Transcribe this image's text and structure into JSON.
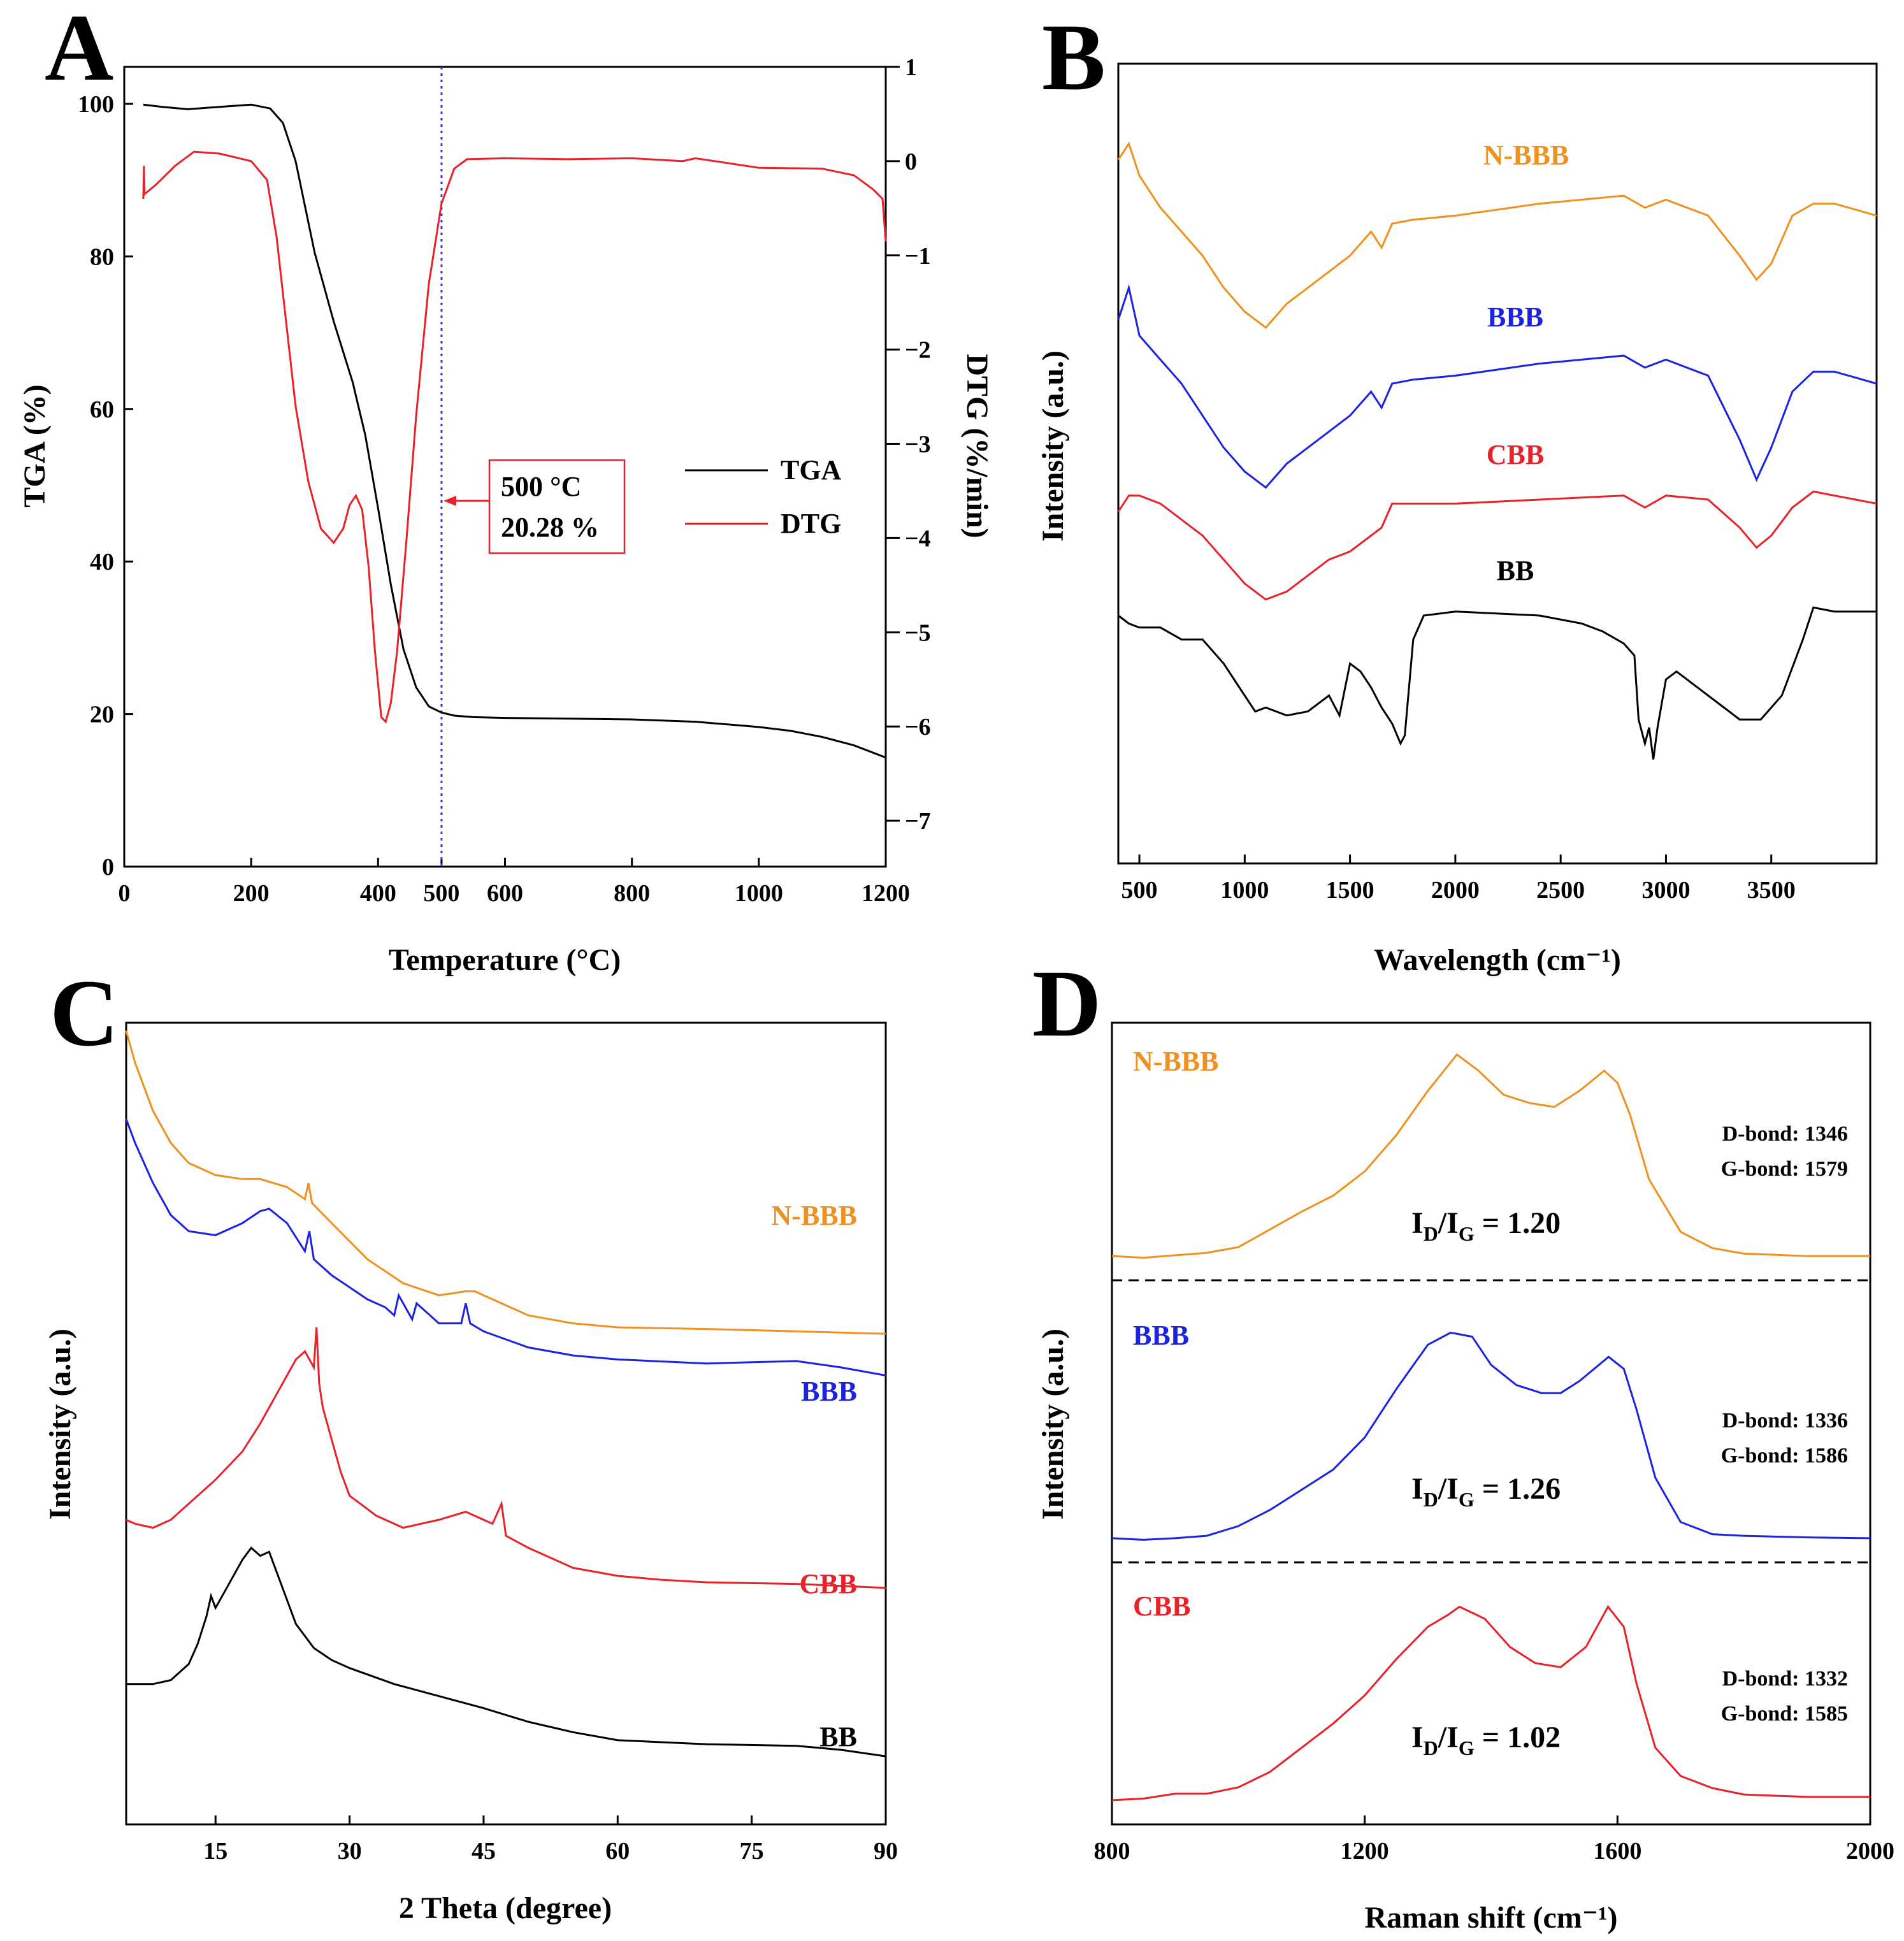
{
  "figure": {
    "panels": [
      "A",
      "B",
      "C",
      "D"
    ]
  },
  "colors": {
    "axis": "#000000",
    "tga": "#000000",
    "dtg": "#e8222a",
    "n_bbb": "#f0901e",
    "bbb": "#1b23e0",
    "cbb": "#e8222a",
    "bb": "#000000",
    "marker_line": "#3333ff"
  },
  "chart_data": [
    {
      "panel": "A",
      "type": "line",
      "xlabel": "Temperature (°C)",
      "ylabel": "TGA (%)",
      "y2label": "DTG (%/min)",
      "xlim": [
        0,
        1200
      ],
      "ylim": [
        0,
        105
      ],
      "y2lim": [
        -7.5,
        1
      ],
      "xticks": [
        "0",
        "200",
        "400",
        "500",
        "600",
        "800",
        "1000",
        "1200"
      ],
      "xtick_values": [
        0,
        200,
        400,
        500,
        600,
        800,
        1000,
        1200
      ],
      "yticks": [
        "0",
        "20",
        "40",
        "60",
        "80",
        "100"
      ],
      "ytick_values": [
        0,
        20,
        40,
        60,
        80,
        100
      ],
      "y2ticks": [
        "1",
        "0",
        "−1",
        "−2",
        "−3",
        "−4",
        "−5",
        "−6",
        "−7"
      ],
      "y2tick_values": [
        1,
        0,
        -1,
        -2,
        -3,
        -4,
        -5,
        -6,
        -7
      ],
      "vline_x": 500,
      "annotation": {
        "line1": "500 °C",
        "line2": "20.28 %"
      },
      "legend": [
        "TGA",
        "DTG"
      ],
      "series": [
        {
          "name": "TGA",
          "axis": "left",
          "color": "#000000",
          "x": [
            30,
            60,
            100,
            150,
            200,
            230,
            250,
            270,
            300,
            330,
            360,
            380,
            400,
            420,
            440,
            460,
            480,
            500,
            520,
            550,
            600,
            700,
            800,
            900,
            1000,
            1050,
            1100,
            1150,
            1200
          ],
          "y": [
            99.9,
            99.6,
            99.3,
            99.6,
            99.9,
            99.4,
            97.5,
            92.5,
            80.5,
            71.5,
            63.5,
            56.5,
            47.0,
            37.0,
            28.5,
            23.5,
            21.0,
            20.2,
            19.8,
            19.6,
            19.5,
            19.4,
            19.3,
            19.0,
            18.3,
            17.8,
            17.0,
            15.9,
            14.3
          ]
        },
        {
          "name": "DTG",
          "axis": "right",
          "color": "#e8222a",
          "x": [
            30,
            31,
            32,
            50,
            80,
            110,
            150,
            200,
            225,
            240,
            255,
            270,
            290,
            310,
            330,
            345,
            355,
            365,
            375,
            385,
            395,
            405,
            412,
            420,
            430,
            445,
            460,
            480,
            500,
            520,
            540,
            600,
            700,
            800,
            880,
            900,
            1000,
            1100,
            1150,
            1180,
            1195,
            1200
          ],
          "y": [
            -0.4,
            -0.05,
            -0.35,
            -0.25,
            -0.05,
            0.1,
            0.08,
            0.0,
            -0.2,
            -0.8,
            -1.7,
            -2.6,
            -3.4,
            -3.9,
            -4.05,
            -3.9,
            -3.65,
            -3.55,
            -3.7,
            -4.3,
            -5.2,
            -5.9,
            -5.95,
            -5.75,
            -5.2,
            -4.0,
            -2.7,
            -1.3,
            -0.45,
            -0.08,
            0.02,
            0.03,
            0.02,
            0.03,
            0.0,
            0.03,
            -0.07,
            -0.08,
            -0.15,
            -0.3,
            -0.4,
            -0.85
          ]
        }
      ]
    },
    {
      "panel": "B",
      "type": "line",
      "xlabel": "Wavelength (cm⁻¹)",
      "ylabel": "Intensity (a.u.)",
      "xlim": [
        400,
        4000
      ],
      "ylim": [
        0,
        100
      ],
      "xticks": [
        "500",
        "1000",
        "1500",
        "2000",
        "2500",
        "3000",
        "3500"
      ],
      "xtick_values": [
        500,
        1000,
        1500,
        2000,
        2500,
        3000,
        3500
      ],
      "series": [
        {
          "name": "N-BBB",
          "color": "#f0901e",
          "x": [
            400,
            450,
            500,
            600,
            700,
            800,
            900,
            1000,
            1100,
            1200,
            1300,
            1400,
            1500,
            1600,
            1650,
            1700,
            1800,
            2000,
            2400,
            2800,
            2900,
            3000,
            3200,
            3350,
            3430,
            3500,
            3600,
            3700,
            3800,
            4000
          ],
          "y": [
            88,
            90,
            86,
            82,
            79,
            76,
            72,
            69,
            67,
            70,
            72,
            74,
            76,
            79,
            77,
            80,
            80.5,
            81,
            82.5,
            83.5,
            82,
            83,
            81,
            76,
            73,
            75,
            81,
            82.5,
            82.5,
            81
          ]
        },
        {
          "name": "BBB",
          "color": "#1b23e0",
          "x": [
            400,
            450,
            500,
            600,
            700,
            800,
            900,
            1000,
            1100,
            1200,
            1300,
            1400,
            1500,
            1600,
            1650,
            1700,
            1800,
            2000,
            2400,
            2800,
            2900,
            3000,
            3200,
            3350,
            3430,
            3500,
            3600,
            3700,
            3800,
            4000
          ],
          "y": [
            68,
            72,
            66,
            63,
            60,
            56,
            52,
            49,
            47,
            50,
            52,
            54,
            56,
            59,
            57,
            60,
            60.5,
            61,
            62.5,
            63.5,
            62,
            63,
            61,
            53,
            48,
            52,
            59,
            61.5,
            61.5,
            60
          ]
        },
        {
          "name": "CBB",
          "color": "#e8222a",
          "x": [
            400,
            450,
            500,
            600,
            700,
            800,
            900,
            1000,
            1100,
            1200,
            1300,
            1400,
            1500,
            1600,
            1650,
            1700,
            1800,
            2000,
            2400,
            2800,
            2900,
            3000,
            3200,
            3350,
            3430,
            3500,
            3600,
            3700,
            3800,
            4000
          ],
          "y": [
            44,
            46,
            46,
            45,
            43,
            41,
            38,
            35,
            33,
            34,
            36,
            38,
            39,
            41,
            42,
            45,
            45,
            45,
            45.5,
            46,
            44.5,
            46,
            45.5,
            42,
            39.5,
            41,
            44.5,
            46.5,
            46,
            45
          ]
        },
        {
          "name": "BB",
          "color": "#000000",
          "x": [
            400,
            450,
            500,
            600,
            700,
            800,
            900,
            1000,
            1050,
            1100,
            1200,
            1300,
            1400,
            1450,
            1500,
            1550,
            1600,
            1650,
            1700,
            1740,
            1760,
            1800,
            1850,
            2000,
            2400,
            2600,
            2700,
            2800,
            2850,
            2870,
            2900,
            2920,
            2940,
            2960,
            3000,
            3050,
            3100,
            3200,
            3300,
            3350,
            3450,
            3550,
            3650,
            3700,
            3800,
            4000
          ],
          "y": [
            31,
            30,
            29.5,
            29.5,
            28,
            28,
            25,
            21,
            19,
            19.5,
            18.5,
            19,
            21,
            18.5,
            25,
            24,
            22,
            19.5,
            17.5,
            15,
            16,
            28,
            31,
            31.5,
            31,
            30,
            29,
            27.5,
            26,
            18,
            15,
            17,
            13,
            17,
            23,
            24,
            23,
            21,
            19,
            18,
            18,
            21,
            28,
            32,
            31.5,
            31.5
          ]
        }
      ],
      "labels": [
        "N-BBB",
        "BBB",
        "CBB",
        "BB"
      ]
    },
    {
      "panel": "C",
      "type": "line",
      "xlabel": "2 Theta (degree)",
      "ylabel": "Intensity (a.u.)",
      "xlim": [
        5,
        90
      ],
      "ylim": [
        0,
        100
      ],
      "xticks": [
        "15",
        "30",
        "45",
        "60",
        "75",
        "90"
      ],
      "xtick_values": [
        15,
        30,
        45,
        60,
        75,
        90
      ],
      "series": [
        {
          "name": "N-BBB",
          "color": "#f0901e",
          "x": [
            5,
            6,
            8,
            10,
            12,
            15,
            18,
            20,
            23,
            25,
            25.4,
            25.8,
            28,
            32,
            36,
            40,
            43,
            44,
            46,
            50,
            55,
            60,
            70,
            80,
            90
          ],
          "y": [
            99,
            95,
            89,
            85,
            82.5,
            81,
            80.5,
            80.5,
            79.5,
            78,
            80,
            77.5,
            75,
            70.5,
            67.5,
            66,
            66.5,
            66.5,
            65.5,
            63.5,
            62.5,
            62,
            61.8,
            61.5,
            61.2
          ]
        },
        {
          "name": "BBB",
          "color": "#1b23e0",
          "x": [
            5,
            6,
            8,
            10,
            12,
            15,
            18,
            20,
            21,
            23,
            25,
            25.5,
            26,
            28,
            30,
            32,
            34,
            35,
            35.5,
            37,
            37.5,
            40,
            42.5,
            43,
            43.5,
            45,
            50,
            55,
            60,
            70,
            80,
            85,
            90
          ],
          "y": [
            88,
            85,
            80,
            76,
            74,
            73.5,
            75,
            76.5,
            76.8,
            75,
            71.5,
            74,
            70.5,
            68.5,
            67,
            65.5,
            64.5,
            63.5,
            66,
            63,
            65,
            62.5,
            62.5,
            65,
            62.5,
            61.5,
            59.5,
            58.5,
            58,
            57.5,
            57.8,
            57,
            56
          ]
        },
        {
          "name": "CBB",
          "color": "#e8222a",
          "x": [
            5,
            6,
            8,
            10,
            12,
            15,
            18,
            20,
            22,
            24,
            25,
            26,
            26.3,
            26.6,
            27,
            28,
            29,
            30,
            33,
            36,
            40,
            43,
            46,
            47,
            47.5,
            50,
            55,
            60,
            65,
            70,
            80,
            90
          ],
          "y": [
            38,
            37.5,
            37,
            38,
            40,
            43,
            46.5,
            50,
            54,
            58,
            59,
            57,
            62,
            55,
            52,
            48,
            44,
            41,
            38.5,
            37,
            38,
            39,
            37.5,
            40,
            36,
            34.5,
            32,
            31,
            30.5,
            30.2,
            30,
            29.5
          ]
        },
        {
          "name": "BB",
          "color": "#000000",
          "x": [
            5,
            8,
            10,
            12,
            13,
            14,
            14.5,
            15,
            16,
            18,
            19,
            20,
            21,
            22,
            24,
            26,
            28,
            30,
            35,
            40,
            45,
            50,
            55,
            60,
            70,
            80,
            85,
            90
          ],
          "y": [
            17.5,
            17.5,
            18,
            20,
            22.5,
            26,
            28.5,
            27,
            29,
            33,
            34.5,
            33.5,
            34,
            31,
            25,
            22,
            20.5,
            19.5,
            17.5,
            16,
            14.5,
            12.8,
            11.5,
            10.5,
            10,
            9.8,
            9.3,
            8.5
          ]
        }
      ],
      "labels": [
        "N-BBB",
        "BBB",
        "CBB",
        "BB"
      ]
    },
    {
      "panel": "D",
      "type": "line",
      "xlabel": "Raman shift (cm⁻¹)",
      "ylabel": "Intensity (a.u.)",
      "xlim": [
        800,
        2000
      ],
      "ylim": [
        0,
        100
      ],
      "xticks": [
        "800",
        "1200",
        "1600",
        "2000"
      ],
      "xtick_values": [
        800,
        1200,
        1600,
        2000
      ],
      "dashed_separators": [
        64.5,
        29.5
      ],
      "series": [
        {
          "name": "N-BBB",
          "color": "#f0901e",
          "x": [
            800,
            850,
            900,
            950,
            1000,
            1050,
            1100,
            1150,
            1200,
            1250,
            1300,
            1346,
            1380,
            1420,
            1460,
            1500,
            1540,
            1579,
            1600,
            1620,
            1650,
            1700,
            1750,
            1800,
            1900,
            2000
          ],
          "y": [
            67.5,
            67.3,
            67.6,
            67.9,
            68.6,
            70.8,
            73,
            75,
            78,
            82.5,
            88,
            92.5,
            90.5,
            87.5,
            86.5,
            86,
            88,
            90.5,
            89,
            85,
            77,
            70.5,
            68.5,
            67.8,
            67.5,
            67.5
          ]
        },
        {
          "name": "BBB",
          "color": "#1b23e0",
          "x": [
            800,
            850,
            900,
            950,
            1000,
            1050,
            1100,
            1150,
            1200,
            1250,
            1300,
            1336,
            1370,
            1400,
            1440,
            1480,
            1510,
            1540,
            1586,
            1610,
            1630,
            1660,
            1700,
            1750,
            1800,
            1900,
            2000
          ],
          "y": [
            32.5,
            32.3,
            32.5,
            32.8,
            34,
            36,
            38.5,
            41,
            45,
            51,
            56.5,
            58,
            57.5,
            54,
            51.5,
            50.5,
            50.5,
            52,
            55,
            53.5,
            48.5,
            40,
            34.5,
            33,
            32.8,
            32.6,
            32.5
          ]
        },
        {
          "name": "CBB",
          "color": "#e8222a",
          "x": [
            800,
            850,
            900,
            950,
            1000,
            1050,
            1100,
            1150,
            1200,
            1250,
            1300,
            1332,
            1350,
            1390,
            1430,
            1470,
            1510,
            1550,
            1585,
            1610,
            1630,
            1660,
            1700,
            1750,
            1800,
            1900,
            2000
          ],
          "y": [
            0,
            0.2,
            0.8,
            0.8,
            1.6,
            3.5,
            6.5,
            9.5,
            13,
            17.5,
            21.5,
            23,
            24,
            22.5,
            19,
            17,
            16.5,
            19,
            24,
            21.5,
            14.5,
            6.5,
            3,
            1.5,
            0.7,
            0.4,
            0.4
          ]
        }
      ],
      "labels": [
        "N-BBB",
        "BBB",
        "CBB"
      ],
      "notes": [
        {
          "sample": "N-BBB",
          "d_bond": "D-bond: 1346",
          "g_bond": "G-bond: 1579",
          "ratio_value": "1.20"
        },
        {
          "sample": "BBB",
          "d_bond": "D-bond: 1336",
          "g_bond": "G-bond: 1586",
          "ratio_value": "1.26"
        },
        {
          "sample": "CBB",
          "d_bond": "D-bond: 1332",
          "g_bond": "G-bond: 1585",
          "ratio_value": "1.02"
        }
      ],
      "ratio_prefix": "I",
      "ratio_sub_d": "D",
      "ratio_sub_g": "G"
    }
  ]
}
